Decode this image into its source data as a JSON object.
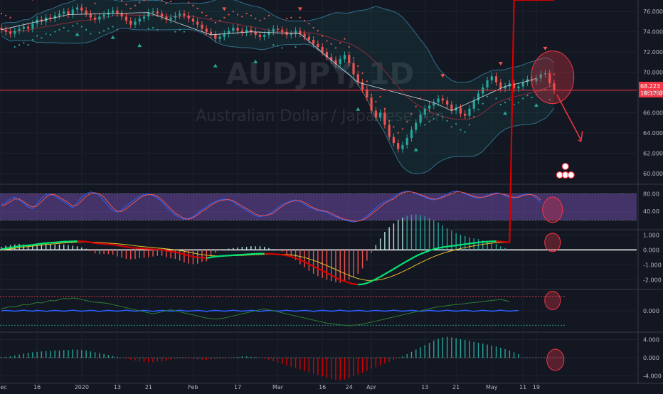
{
  "chart_data": {
    "type": "line",
    "watermark": {
      "symbol": "AUDJPY, 1D",
      "description": "Australian Dollar / Japanese Yen"
    },
    "x_labels": [
      "Dec",
      "16",
      "2020",
      "13",
      "21",
      "Feb",
      "17",
      "Mar",
      "16",
      "24",
      "Apr",
      "13",
      "21",
      "May",
      "11",
      "19"
    ],
    "price": {
      "last": "68.223",
      "countdown": "18:17:07",
      "y_ticks": [
        "76.000",
        "74.000",
        "72.000",
        "70.000",
        "68.000",
        "66.000",
        "64.000",
        "62.000",
        "60.000"
      ],
      "ylim": [
        59.0,
        77.0
      ],
      "close": [
        74.2,
        74.0,
        73.8,
        74.1,
        74.3,
        74.5,
        74.3,
        74.8,
        75.2,
        75.0,
        75.4,
        75.3,
        75.6,
        75.8,
        76.0,
        75.7,
        76.2,
        76.4,
        76.1,
        75.8,
        75.4,
        75.2,
        75.5,
        75.7,
        75.9,
        76.1,
        75.8,
        75.5,
        75.1,
        74.7,
        75.0,
        75.3,
        75.5,
        75.9,
        76.0,
        75.8,
        75.5,
        75.2,
        75.4,
        75.6,
        75.8,
        75.6,
        75.3,
        75.0,
        74.7,
        74.3,
        74.0,
        73.7,
        73.3,
        73.5,
        73.8,
        74.1,
        74.4,
        74.1,
        73.9,
        74.2,
        74.0,
        73.7,
        73.5,
        73.7,
        74.0,
        74.3,
        74.2,
        74.0,
        73.7,
        73.8,
        74.1,
        73.8,
        73.5,
        73.2,
        72.8,
        72.5,
        72.0,
        71.5,
        71.2,
        70.8,
        71.3,
        71.7,
        70.9,
        69.8,
        69.0,
        68.3,
        67.5,
        66.2,
        65.5,
        66.0,
        64.8,
        63.6,
        63.0,
        62.4,
        62.8,
        63.5,
        64.3,
        65.0,
        65.8,
        66.4,
        66.7,
        67.0,
        67.4,
        67.2,
        66.8,
        66.2,
        66.5,
        65.9,
        65.7,
        66.4,
        67.2,
        67.9,
        68.5,
        69.2,
        69.6,
        69.0,
        68.4,
        68.6,
        68.9,
        68.4,
        68.6,
        69.0,
        69.3,
        69.1,
        69.4,
        69.8,
        69.9,
        68.9,
        68.2
      ],
      "events_up": [
        "17:Dec-16-a",
        "25:Jan-2-a",
        "31:Jan-20-a",
        "48:Feb-5-a",
        "57:Feb-17-a",
        "80:Mar-4-a",
        "93:Mar-19-a",
        "113:Apr-16-a",
        "120:Apr-23-a"
      ],
      "events_down": [
        "7:Dec-9-d",
        "27:Jan-6-d",
        "50:Feb-11-d",
        "67:Feb-21-d",
        "99:Mar-30-d",
        "112:Apr-14-d",
        "122:Apr-27-d"
      ]
    },
    "stoch": {
      "y_ticks": [
        "80.00",
        "40.00"
      ],
      "ylim": [
        0,
        100
      ],
      "k": [
        55,
        60,
        68,
        72,
        66,
        58,
        50,
        46,
        58,
        70,
        78,
        80,
        74,
        68,
        62,
        55,
        48,
        60,
        72,
        80,
        84,
        82,
        76,
        64,
        52,
        42,
        38,
        44,
        52,
        60,
        68,
        74,
        78,
        80,
        76,
        70,
        62,
        50,
        40,
        32,
        26,
        22,
        24,
        28,
        36,
        44,
        50,
        58,
        62,
        66,
        68,
        66,
        62,
        54,
        48,
        42,
        36,
        30,
        28,
        30,
        34,
        40,
        48,
        56,
        60,
        64,
        66,
        62,
        56,
        50,
        46,
        42,
        40,
        38,
        32,
        28,
        24,
        20,
        18,
        16,
        18,
        22,
        30,
        38,
        48,
        56,
        62,
        66,
        72,
        80,
        84,
        86,
        84,
        80,
        76,
        72,
        68,
        66,
        70,
        74,
        80,
        84,
        86,
        84,
        80,
        76,
        72,
        70,
        72,
        76,
        80,
        82,
        80,
        76,
        72,
        70,
        74,
        78,
        80,
        78,
        70,
        60
      ],
      "d": [
        52,
        56,
        62,
        68,
        68,
        62,
        54,
        50,
        52,
        62,
        72,
        78,
        78,
        72,
        66,
        60,
        52,
        54,
        64,
        74,
        80,
        82,
        80,
        72,
        60,
        48,
        40,
        40,
        46,
        54,
        62,
        70,
        76,
        78,
        78,
        74,
        66,
        56,
        46,
        36,
        30,
        24,
        22,
        26,
        32,
        40,
        46,
        54,
        60,
        64,
        66,
        67,
        64,
        58,
        52,
        46,
        40,
        34,
        30,
        30,
        32,
        36,
        44,
        52,
        58,
        62,
        64,
        64,
        60,
        54,
        48,
        44,
        42,
        40,
        36,
        30,
        26,
        22,
        20,
        18,
        18,
        20,
        26,
        34,
        42,
        50,
        58,
        64,
        68,
        76,
        82,
        84,
        84,
        82,
        78,
        74,
        70,
        68,
        68,
        72,
        76,
        80,
        84,
        84,
        82,
        78,
        74,
        72,
        72,
        74,
        78,
        80,
        80,
        78,
        74,
        72,
        72,
        76,
        78,
        78,
        74,
        66
      ]
    },
    "macd": {
      "y_ticks": [
        "1.000",
        "0.000",
        "-1.000",
        "-2.000"
      ],
      "ylim": [
        -2.6,
        1.3
      ],
      "macd": [
        0.05,
        0.1,
        0.15,
        0.2,
        0.25,
        0.28,
        0.3,
        0.33,
        0.38,
        0.42,
        0.45,
        0.47,
        0.5,
        0.52,
        0.55,
        0.56,
        0.57,
        0.58,
        0.57,
        0.55,
        0.5,
        0.45,
        0.42,
        0.4,
        0.38,
        0.35,
        0.3,
        0.25,
        0.2,
        0.15,
        0.12,
        0.1,
        0.08,
        0.06,
        0.04,
        0.02,
        0.0,
        -0.05,
        -0.1,
        -0.15,
        -0.22,
        -0.3,
        -0.38,
        -0.45,
        -0.5,
        -0.52,
        -0.55,
        -0.5,
        -0.45,
        -0.42,
        -0.4,
        -0.38,
        -0.36,
        -0.34,
        -0.32,
        -0.3,
        -0.28,
        -0.26,
        -0.25,
        -0.25,
        -0.26,
        -0.28,
        -0.3,
        -0.33,
        -0.38,
        -0.45,
        -0.55,
        -0.68,
        -0.8,
        -0.95,
        -1.1,
        -1.25,
        -1.4,
        -1.55,
        -1.7,
        -1.85,
        -2.0,
        -2.1,
        -2.2,
        -2.28,
        -2.32,
        -2.3,
        -2.22,
        -2.1,
        -1.95,
        -1.8,
        -1.62,
        -1.45,
        -1.28,
        -1.1,
        -0.92,
        -0.75,
        -0.58,
        -0.42,
        -0.28,
        -0.16,
        -0.05,
        0.05,
        0.12,
        0.18,
        0.22,
        0.26,
        0.3,
        0.34,
        0.38,
        0.42,
        0.46,
        0.5,
        0.53,
        0.55,
        0.57,
        0.58,
        0.56,
        0.53,
        0.5
      ],
      "signal": [
        0.0,
        0.03,
        0.07,
        0.11,
        0.15,
        0.19,
        0.22,
        0.25,
        0.29,
        0.32,
        0.35,
        0.38,
        0.41,
        0.43,
        0.46,
        0.48,
        0.5,
        0.52,
        0.53,
        0.53,
        0.52,
        0.51,
        0.49,
        0.47,
        0.45,
        0.43,
        0.41,
        0.38,
        0.35,
        0.31,
        0.27,
        0.24,
        0.21,
        0.18,
        0.15,
        0.12,
        0.1,
        0.07,
        0.04,
        0.0,
        -0.04,
        -0.09,
        -0.15,
        -0.21,
        -0.27,
        -0.32,
        -0.36,
        -0.39,
        -0.4,
        -0.41,
        -0.41,
        -0.4,
        -0.39,
        -0.38,
        -0.37,
        -0.35,
        -0.34,
        -0.32,
        -0.31,
        -0.3,
        -0.29,
        -0.29,
        -0.29,
        -0.3,
        -0.31,
        -0.34,
        -0.38,
        -0.44,
        -0.51,
        -0.6,
        -0.7,
        -0.81,
        -0.93,
        -1.05,
        -1.18,
        -1.31,
        -1.45,
        -1.58,
        -1.7,
        -1.82,
        -1.92,
        -1.99,
        -2.04,
        -2.05,
        -2.03,
        -1.99,
        -1.92,
        -1.83,
        -1.72,
        -1.6,
        -1.46,
        -1.32,
        -1.17,
        -1.01,
        -0.86,
        -0.72,
        -0.58,
        -0.45,
        -0.34,
        -0.23,
        -0.14,
        -0.06,
        0.02,
        0.09,
        0.15,
        0.21,
        0.27,
        0.32,
        0.37,
        0.41,
        0.45,
        0.48,
        0.5,
        0.5,
        0.5
      ]
    },
    "osc3": {
      "y_ticks": [
        "0.000"
      ],
      "ylim": [
        -1,
        1
      ],
      "line_a": [
        0.1,
        0.15,
        0.2,
        0.18,
        0.25,
        0.3,
        0.28,
        0.35,
        0.4,
        0.38,
        0.45,
        0.5,
        0.48,
        0.55,
        0.6,
        0.58,
        0.62,
        0.6,
        0.55,
        0.5,
        0.45,
        0.42,
        0.4,
        0.38,
        0.35,
        0.3,
        0.25,
        0.2,
        0.15,
        0.1,
        0.05,
        0.0,
        -0.05,
        -0.1,
        -0.15,
        -0.1,
        -0.05,
        0.0,
        0.05,
        0.0,
        -0.05,
        -0.1,
        -0.15,
        -0.2,
        -0.25,
        -0.3,
        -0.35,
        -0.38,
        -0.4,
        -0.38,
        -0.35,
        -0.3,
        -0.25,
        -0.2,
        -0.15,
        -0.1,
        -0.05,
        0.0,
        0.05,
        0.1,
        0.05,
        0.0,
        -0.05,
        -0.1,
        -0.15,
        -0.2,
        -0.25,
        -0.3,
        -0.35,
        -0.4,
        -0.45,
        -0.5,
        -0.55,
        -0.6,
        -0.62,
        -0.65,
        -0.68,
        -0.7,
        -0.72,
        -0.7,
        -0.68,
        -0.65,
        -0.6,
        -0.55,
        -0.5,
        -0.45,
        -0.4,
        -0.35,
        -0.3,
        -0.25,
        -0.2,
        -0.15,
        -0.1,
        -0.05,
        0.0,
        0.05,
        0.1,
        0.15,
        0.2,
        0.22,
        0.25,
        0.28,
        0.3,
        0.32,
        0.35,
        0.38,
        0.4,
        0.42,
        0.45,
        0.48,
        0.5,
        0.52,
        0.55,
        0.5,
        0.45
      ],
      "line_b": [
        0.0,
        0.02,
        0.0,
        -0.02,
        0.0,
        0.03,
        0.0,
        -0.02,
        0.02,
        0.0,
        -0.03,
        0.0,
        0.02,
        0.0,
        -0.02,
        0.0,
        0.03,
        0.0,
        -0.02,
        0.0,
        0.02,
        0.0,
        -0.03,
        0.0,
        0.02,
        0.0,
        -0.02,
        0.0,
        0.03,
        0.0,
        -0.02,
        0.0,
        0.02,
        0.0,
        -0.03,
        0.0,
        0.02,
        0.0,
        -0.02,
        0.0,
        0.03,
        0.0,
        -0.02,
        0.0,
        0.02,
        0.0,
        -0.03,
        0.0,
        0.02,
        0.0,
        -0.02,
        0.0,
        0.03,
        0.0,
        -0.02,
        0.0,
        0.02,
        0.0,
        -0.03,
        0.0,
        0.02,
        0.0,
        -0.02,
        0.0,
        0.03,
        0.0,
        -0.02,
        0.0,
        0.02,
        0.0,
        -0.03,
        0.0,
        0.02,
        0.0,
        -0.02,
        0.0,
        0.03,
        0.0,
        -0.02,
        0.0,
        0.02,
        0.0,
        -0.03,
        0.0,
        0.02,
        0.0,
        -0.02,
        0.0,
        0.03,
        0.0,
        -0.02,
        0.0,
        0.02,
        0.0,
        -0.03,
        0.0,
        0.02,
        0.0,
        -0.02,
        0.0,
        0.03,
        0.0,
        -0.02,
        0.0,
        0.02,
        0.0,
        -0.03,
        0.0,
        0.02,
        0.0,
        -0.02,
        0.0,
        0.03,
        0.0,
        -0.02,
        0.0,
        0.02
      ]
    },
    "hist5": {
      "y_ticks": [
        "4.000",
        "0.000",
        "-4.000"
      ],
      "ylim": [
        -5.5,
        5.5
      ],
      "values": [
        0.1,
        0.2,
        0.3,
        0.5,
        0.7,
        0.9,
        1.1,
        1.2,
        1.3,
        1.4,
        1.5,
        1.5,
        1.6,
        1.6,
        1.7,
        1.7,
        1.8,
        1.8,
        1.7,
        1.6,
        1.4,
        1.2,
        1.0,
        0.8,
        0.6,
        0.4,
        0.2,
        0.0,
        -0.2,
        -0.4,
        -0.6,
        -0.8,
        -0.9,
        -1.0,
        -1.0,
        -0.9,
        -0.8,
        -0.6,
        -0.4,
        -0.2,
        0.0,
        -0.1,
        -0.2,
        -0.3,
        -0.4,
        -0.5,
        -0.5,
        -0.4,
        -0.3,
        -0.2,
        -0.1,
        0.0,
        0.1,
        0.2,
        0.3,
        0.3,
        0.2,
        0.1,
        0.0,
        -0.2,
        -0.5,
        -0.8,
        -1.1,
        -1.4,
        -1.7,
        -2.0,
        -2.3,
        -2.6,
        -2.9,
        -3.2,
        -3.5,
        -3.8,
        -4.1,
        -4.4,
        -4.7,
        -4.9,
        -5.0,
        -4.8,
        -4.5,
        -4.1,
        -3.7,
        -3.3,
        -2.9,
        -2.5,
        -2.1,
        -1.7,
        -1.3,
        -0.9,
        -0.5,
        -0.1,
        0.3,
        0.8,
        1.3,
        1.8,
        2.3,
        2.8,
        3.3,
        3.8,
        4.2,
        4.5,
        4.6,
        4.5,
        4.3,
        4.1,
        3.9,
        3.7,
        3.5,
        3.3,
        3.1,
        2.9,
        2.7,
        2.5,
        2.2,
        1.9,
        1.6,
        1.2,
        0.8
      ]
    },
    "annotations": {
      "color": "#f23645",
      "circle_fill": "rgba(242,54,69,0.30)"
    }
  }
}
